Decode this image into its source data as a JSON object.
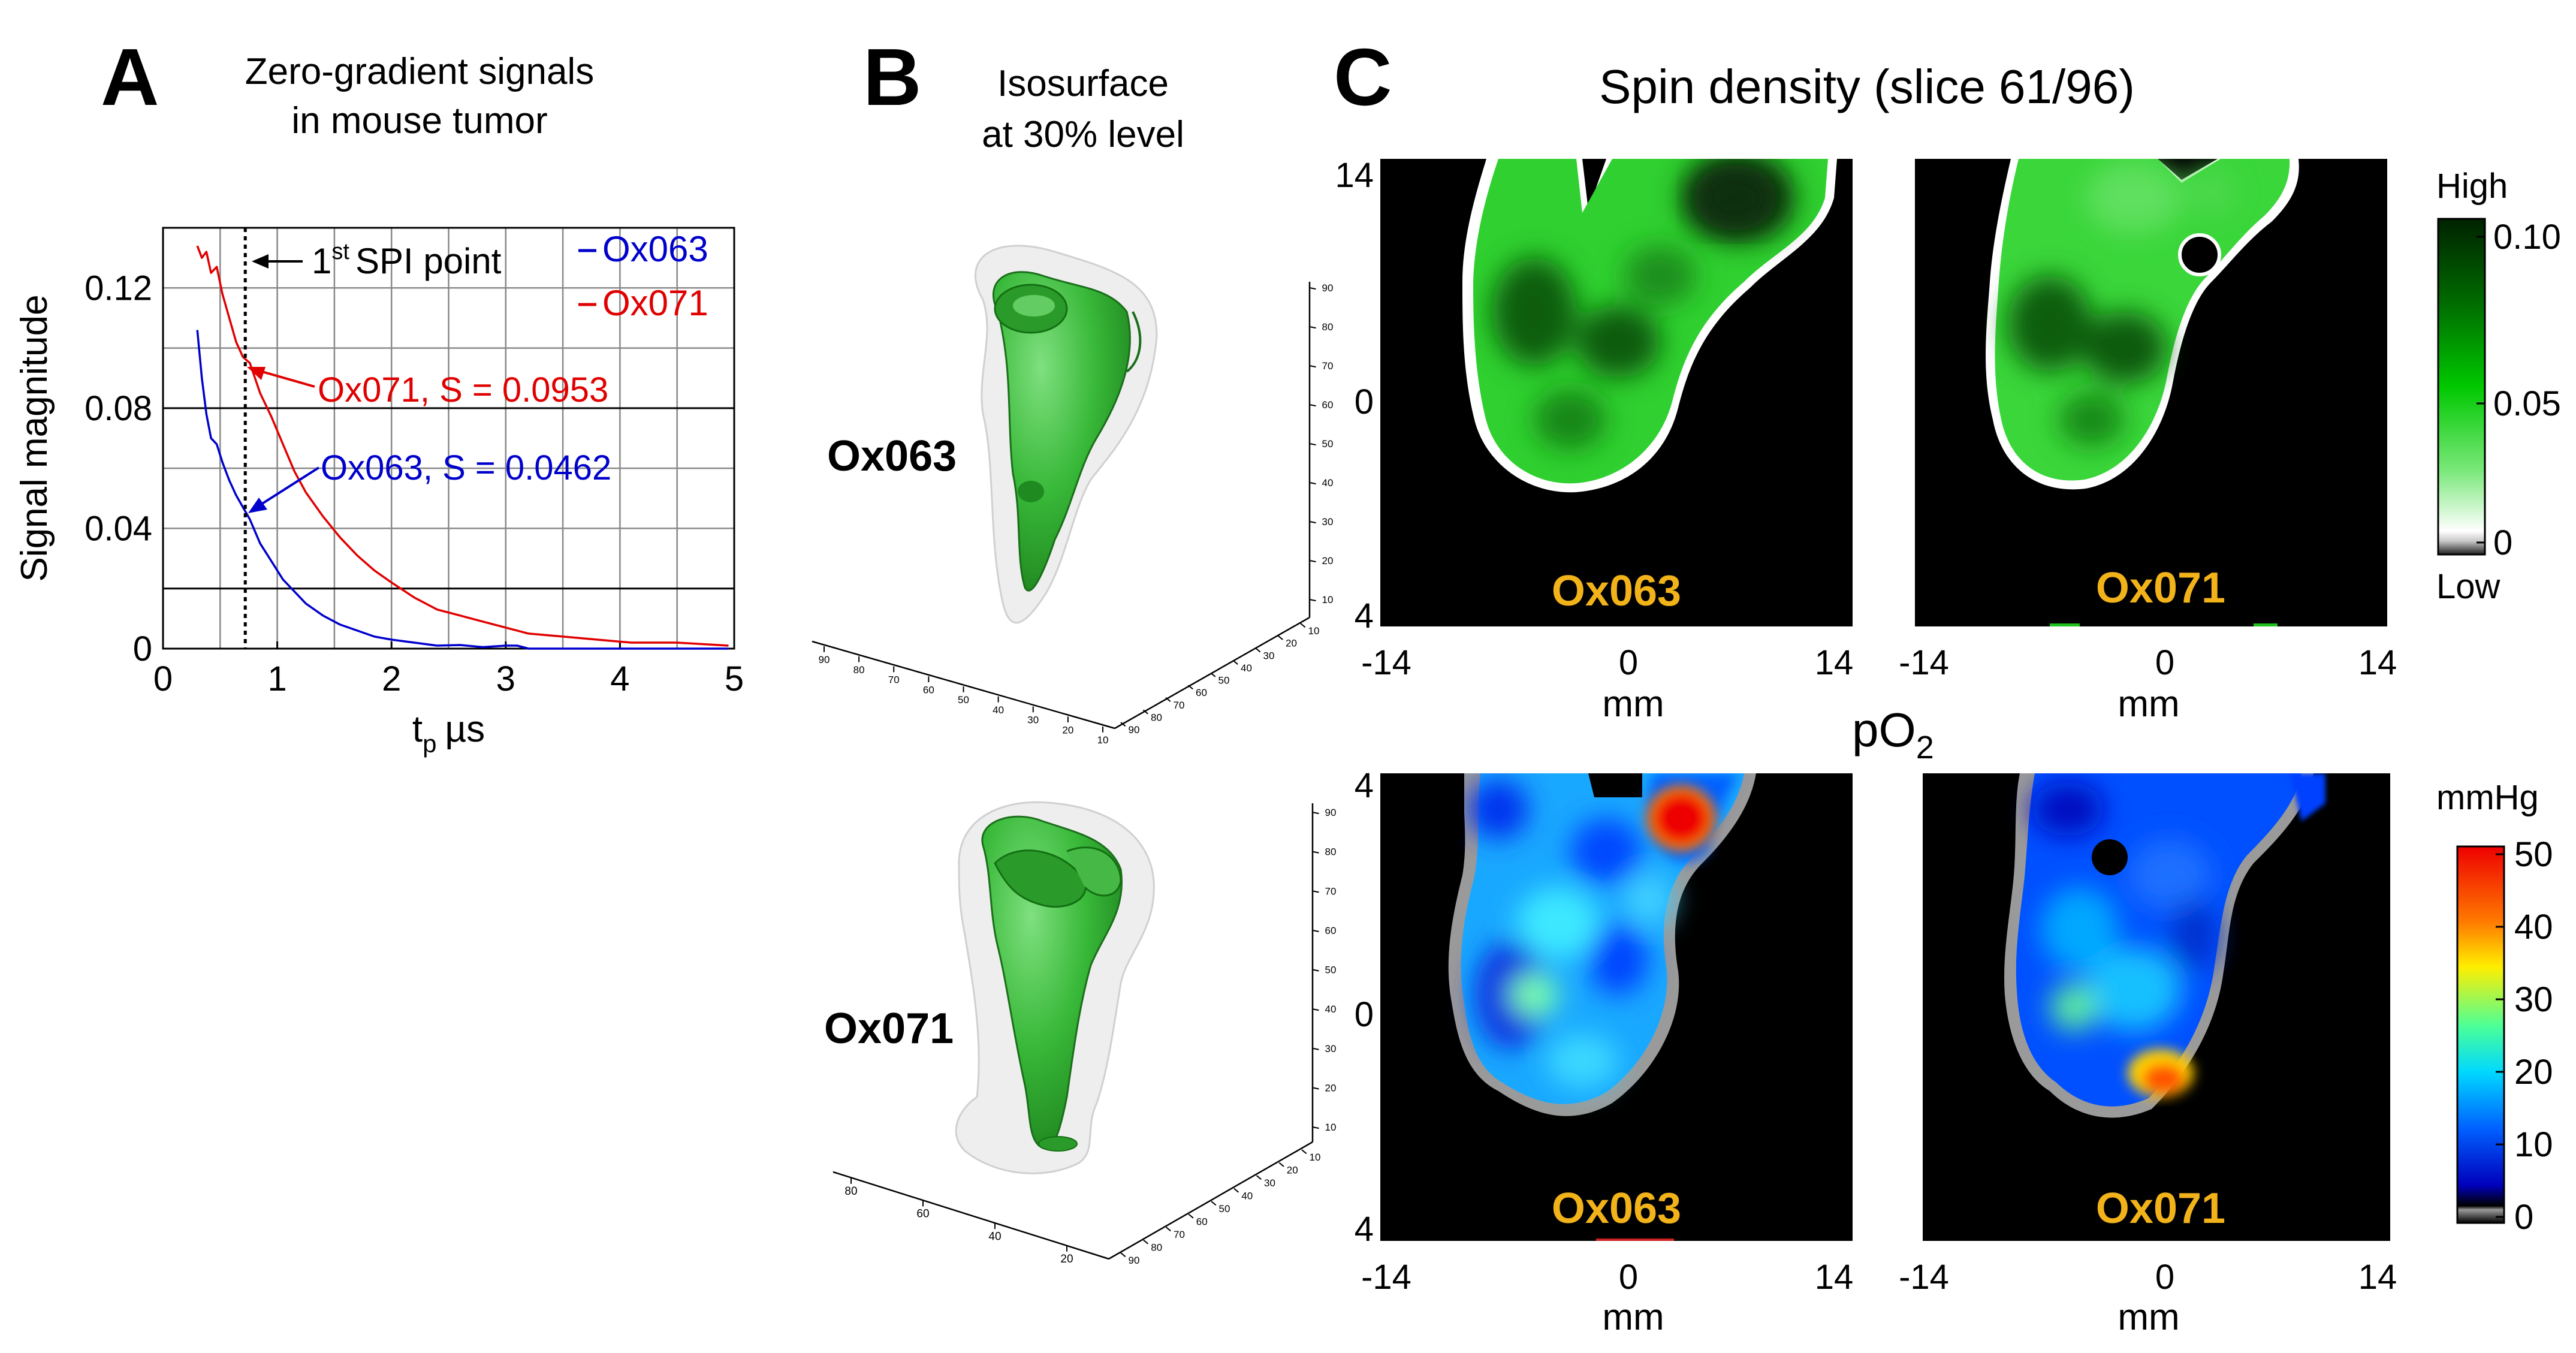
{
  "panelA": {
    "letter": "A",
    "title_line1": "Zero-gradient signals",
    "title_line2": "in mouse tumor",
    "annotation_spi": "SPI point",
    "annotation_spi_prefix": "1",
    "annotation_spi_sup": "st",
    "label_ox071": "Ox071, S = 0.0953",
    "label_ox063": "Ox063, S = 0.0462"
  },
  "panelB": {
    "letter": "B",
    "title_line1": "Isosurface",
    "title_line2": "at 30% level",
    "label_top": "Ox063",
    "label_bottom": "Ox071",
    "axis_ticks_a": [
      "90",
      "80",
      "70",
      "60",
      "50",
      "40",
      "30",
      "20",
      "10"
    ],
    "axis_ticks_b": [
      "90",
      "80",
      "70",
      "60",
      "50",
      "40",
      "30",
      "20",
      "10"
    ],
    "axis_ticks_c": [
      "90",
      "80",
      "70",
      "60",
      "50",
      "40",
      "30",
      "20",
      "10"
    ],
    "axis_ticks_d": [
      "80",
      "60",
      "40",
      "20"
    ],
    "axis_ticks_e": [
      "90",
      "80",
      "70",
      "60",
      "50",
      "40",
      "30",
      "20",
      "10"
    ],
    "axis_ticks_f": [
      "90",
      "80",
      "70",
      "60",
      "50",
      "40",
      "30",
      "20",
      "10"
    ]
  },
  "panelC": {
    "letter": "C",
    "title": "Spin density (slice 61/96)",
    "pO2_label": "pO",
    "pO2_sub": "2",
    "map_label_left": "Ox063",
    "map_label_right": "Ox071",
    "xlabel": "mm",
    "xticks": [
      "-14",
      "0",
      "14"
    ],
    "yticks_top": [
      "14",
      "0",
      "4"
    ],
    "yticks_bottom": [
      "4",
      "0",
      "4"
    ],
    "cb_spin_high": "High",
    "cb_spin_low": "Low",
    "cb_spin_ticks": [
      "0.10",
      "0.05",
      "0"
    ],
    "cb_po2_unit": "mmHg",
    "cb_po2_ticks": [
      "50",
      "40",
      "30",
      "20",
      "10",
      "0"
    ]
  },
  "colors": {
    "ox063": "#0000cc",
    "ox071": "#e00000",
    "spin_high": "#003000",
    "spin_mid": "#00c000",
    "label_yellow": "#f2b21a"
  },
  "chart_data": {
    "type": "line",
    "title": "Zero-gradient signals in mouse tumor",
    "xlabel": "t",
    "xlabel_sub": "p",
    "xlabel_unit": "µs",
    "ylabel": "Signal magnitude",
    "xlim": [
      0,
      5
    ],
    "ylim": [
      0,
      0.14
    ],
    "xticks": [
      0,
      1,
      2,
      3,
      4,
      5
    ],
    "yticks": [
      0,
      0.04,
      0.08,
      0.12
    ],
    "ytick_labels": [
      "0",
      "0.04",
      "0.08",
      "0.12"
    ],
    "grid": true,
    "legend": "top-right",
    "spi_point_x": 0.72,
    "series": [
      {
        "name": "Ox063",
        "color": "#0000cc",
        "x": [
          0.3,
          0.34,
          0.38,
          0.42,
          0.47,
          0.52,
          0.58,
          0.64,
          0.7,
          0.76,
          0.85,
          0.95,
          1.05,
          1.15,
          1.25,
          1.4,
          1.55,
          1.7,
          1.85,
          2.0,
          2.2,
          2.4,
          2.6,
          2.8,
          3.0,
          3.1,
          3.2,
          3.5,
          4.0,
          4.5,
          4.95
        ],
        "y": [
          0.106,
          0.09,
          0.078,
          0.07,
          0.068,
          0.062,
          0.056,
          0.051,
          0.047,
          0.043,
          0.035,
          0.029,
          0.023,
          0.019,
          0.015,
          0.011,
          0.008,
          0.006,
          0.004,
          0.003,
          0.002,
          0.001,
          0.0012,
          0.0005,
          0.001,
          0.001,
          0.0,
          0.0,
          0.0,
          0.0,
          0.0
        ]
      },
      {
        "name": "Ox071",
        "color": "#e00000",
        "x": [
          0.3,
          0.34,
          0.38,
          0.42,
          0.47,
          0.52,
          0.58,
          0.64,
          0.7,
          0.76,
          0.85,
          0.95,
          1.05,
          1.15,
          1.25,
          1.4,
          1.55,
          1.7,
          1.85,
          2.0,
          2.2,
          2.4,
          2.6,
          2.8,
          3.0,
          3.2,
          3.5,
          3.8,
          4.1,
          4.5,
          4.95
        ],
        "y": [
          0.134,
          0.13,
          0.132,
          0.125,
          0.127,
          0.118,
          0.11,
          0.102,
          0.097,
          0.095,
          0.085,
          0.077,
          0.068,
          0.059,
          0.052,
          0.044,
          0.037,
          0.031,
          0.026,
          0.022,
          0.017,
          0.013,
          0.011,
          0.009,
          0.007,
          0.005,
          0.004,
          0.003,
          0.002,
          0.002,
          0.001
        ]
      }
    ],
    "annotations": [
      {
        "text": "Ox071, S = 0.0953",
        "x": 0.72,
        "y": 0.0953
      },
      {
        "text": "Ox063, S = 0.0462",
        "x": 0.72,
        "y": 0.0462
      }
    ]
  }
}
